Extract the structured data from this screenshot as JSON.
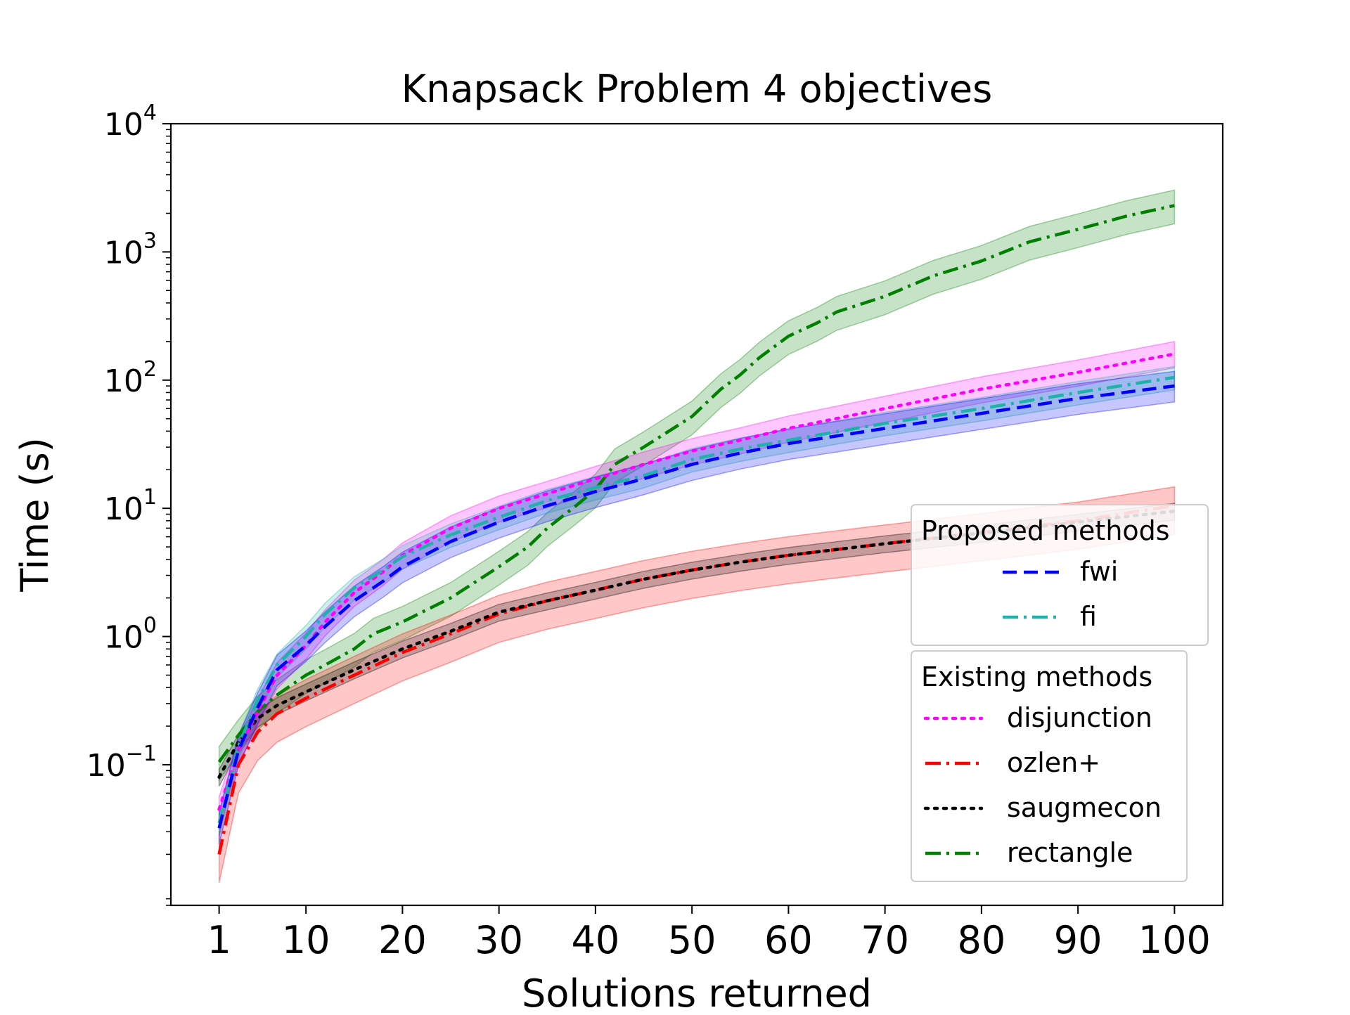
{
  "chart_data": {
    "type": "line",
    "title": "Knapsack Problem 4 objectives",
    "xlabel": "Solutions returned",
    "ylabel": "Time (s)",
    "yscale": "log",
    "xlim": [
      -4,
      105
    ],
    "ylim": [
      0.008,
      10000
    ],
    "x_ticks": [
      1,
      10,
      20,
      30,
      40,
      50,
      60,
      70,
      80,
      90,
      100
    ],
    "y_ticks": [
      {
        "value": 0.1,
        "base": "10",
        "exp": "−1"
      },
      {
        "value": 1,
        "base": "10",
        "exp": "0"
      },
      {
        "value": 10,
        "base": "10",
        "exp": "1"
      },
      {
        "value": 100,
        "base": "10",
        "exp": "2"
      },
      {
        "value": 1000,
        "base": "10",
        "exp": "3"
      },
      {
        "value": 10000,
        "base": "10",
        "exp": "4"
      }
    ],
    "grid": false,
    "legend_groups": [
      {
        "title": "Proposed methods",
        "entries": [
          "fwi",
          "fi"
        ],
        "placement": "right"
      },
      {
        "title": "Existing methods",
        "entries": [
          "disjunction",
          "ozlen+",
          "saugmecon",
          "rectangle"
        ],
        "placement": "lower-right"
      }
    ],
    "series": [
      {
        "name": "disjunction",
        "color": "#ff00ff",
        "style": "dotted",
        "x": [
          1,
          3,
          5,
          7,
          10,
          12,
          15,
          18,
          20,
          25,
          30,
          35,
          40,
          45,
          50,
          55,
          60,
          70,
          80,
          90,
          100
        ],
        "y": [
          0.045,
          0.13,
          0.26,
          0.5,
          0.85,
          1.3,
          2.2,
          3.2,
          4.3,
          7.0,
          10.0,
          13.0,
          17.0,
          22.0,
          28.0,
          34.0,
          42.0,
          60.0,
          85.0,
          115.0,
          160.0
        ],
        "band": [
          0.78,
          1.25
        ]
      },
      {
        "name": "fwi",
        "color": "#0000ff",
        "style": "dashed",
        "x": [
          1,
          3,
          5,
          7,
          10,
          12,
          15,
          18,
          20,
          25,
          30,
          35,
          40,
          45,
          50,
          55,
          60,
          70,
          80,
          90,
          100
        ],
        "y": [
          0.032,
          0.13,
          0.28,
          0.55,
          0.85,
          1.2,
          1.9,
          2.7,
          3.5,
          5.5,
          7.8,
          10.5,
          13.5,
          17.0,
          22.0,
          27.0,
          32.0,
          42.0,
          55.0,
          72.0,
          90.0
        ],
        "band": [
          0.75,
          1.3
        ]
      },
      {
        "name": "fi",
        "color": "#20b2aa",
        "style": "dashdot",
        "x": [
          1,
          3,
          5,
          7,
          10,
          12,
          15,
          18,
          20,
          25,
          30,
          35,
          40,
          45,
          50,
          55,
          60,
          70,
          80,
          90,
          100
        ],
        "y": [
          0.035,
          0.14,
          0.32,
          0.6,
          1.0,
          1.5,
          2.4,
          3.3,
          4.2,
          6.2,
          8.5,
          11.5,
          14.5,
          18.0,
          24.0,
          29.0,
          34.0,
          46.0,
          60.0,
          80.0,
          105.0
        ],
        "band": [
          0.8,
          1.22
        ]
      },
      {
        "name": "ozlen+",
        "color": "#ff0000",
        "style": "dashdot",
        "x": [
          1,
          3,
          5,
          7,
          10,
          15,
          20,
          25,
          30,
          35,
          40,
          45,
          50,
          55,
          60,
          70,
          80,
          90,
          100
        ],
        "y": [
          0.02,
          0.1,
          0.18,
          0.25,
          0.33,
          0.5,
          0.75,
          1.05,
          1.5,
          1.9,
          2.3,
          2.8,
          3.3,
          3.8,
          4.3,
          5.3,
          6.5,
          8.0,
          10.5
        ],
        "band": [
          0.6,
          1.4
        ]
      },
      {
        "name": "saugmecon",
        "color": "#000000",
        "style": "dotted",
        "x": [
          1,
          3,
          5,
          7,
          10,
          15,
          20,
          25,
          30,
          35,
          40,
          45,
          50,
          55,
          60,
          70,
          80,
          90,
          100
        ],
        "y": [
          0.08,
          0.15,
          0.23,
          0.29,
          0.37,
          0.55,
          0.8,
          1.1,
          1.55,
          1.9,
          2.3,
          2.8,
          3.3,
          3.8,
          4.3,
          5.3,
          6.4,
          7.8,
          9.5
        ],
        "band": [
          0.85,
          1.15
        ]
      },
      {
        "name": "rectangle",
        "color": "#008000",
        "style": "dashdot",
        "x": [
          1,
          3,
          5,
          7,
          10,
          12,
          15,
          17,
          20,
          25,
          30,
          33,
          35,
          38,
          40,
          42,
          45,
          50,
          53,
          55,
          57,
          60,
          63,
          65,
          70,
          75,
          80,
          85,
          90,
          95,
          100
        ],
        "y": [
          0.105,
          0.17,
          0.26,
          0.35,
          0.5,
          0.6,
          0.8,
          1.05,
          1.3,
          2.0,
          3.5,
          5.0,
          7.0,
          10.5,
          14.0,
          22.0,
          30.0,
          52.0,
          85.0,
          110.0,
          150.0,
          220.0,
          280.0,
          340.0,
          450.0,
          650.0,
          850.0,
          1200.0,
          1500.0,
          1900.0,
          2300.0
        ],
        "band": [
          0.72,
          1.32
        ]
      }
    ]
  }
}
